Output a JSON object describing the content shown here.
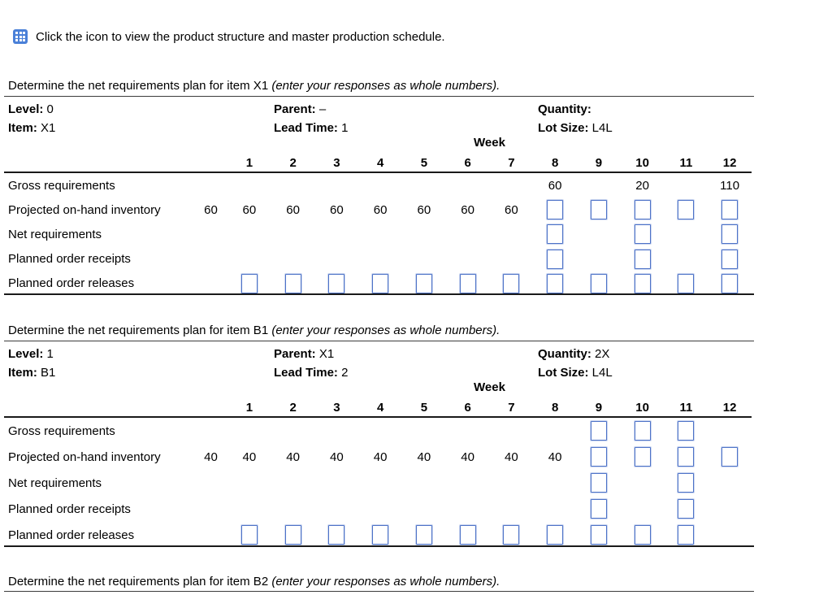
{
  "colors": {
    "icon-blue": "#4a80d8",
    "box-blue": "#4d72c7"
  },
  "header": {
    "icon": "product-structure-icon",
    "instruction": "Click the icon to view the product structure and master production schedule."
  },
  "sections": [
    {
      "intro_regular": "Determine the net requirements plan for item X1 ",
      "intro_italic": "(enter your responses as whole numbers).",
      "table": {
        "meta": {
          "level_label": "Level:",
          "level": "0",
          "item_label": "Item:",
          "item": "X1",
          "parent_label": "Parent:",
          "parent": "–",
          "lead_label": "Lead Time:",
          "lead": "1",
          "qty_label": "Quantity:",
          "qty": "",
          "lot_label": "Lot Size:",
          "lot": "L4L"
        },
        "week_header": "Week",
        "weeks": [
          "1",
          "2",
          "3",
          "4",
          "5",
          "6",
          "7",
          "8",
          "9",
          "10",
          "11",
          "12"
        ],
        "rows": [
          {
            "label": "Gross requirements",
            "initial": "",
            "cells": [
              "",
              "",
              "",
              "",
              "",
              "",
              "",
              "60",
              "",
              "20",
              "",
              "110"
            ]
          },
          {
            "label": "Projected on-hand inventory",
            "initial": "60",
            "cells": [
              "60",
              "60",
              "60",
              "60",
              "60",
              "60",
              "60",
              "box",
              "box",
              "box",
              "box",
              "box"
            ]
          },
          {
            "label": "Net requirements",
            "initial": "",
            "cells": [
              "",
              "",
              "",
              "",
              "",
              "",
              "",
              "box",
              "",
              "box",
              "",
              "box"
            ]
          },
          {
            "label": "Planned order receipts",
            "initial": "",
            "cells": [
              "",
              "",
              "",
              "",
              "",
              "",
              "",
              "box",
              "",
              "box",
              "",
              "box"
            ]
          },
          {
            "label": "Planned order releases",
            "initial": "",
            "cells": [
              "box",
              "box",
              "box",
              "box",
              "box",
              "box",
              "box",
              "box",
              "box",
              "box",
              "box",
              "box"
            ]
          }
        ]
      }
    },
    {
      "intro_regular": "Determine the net requirements plan for item B1 ",
      "intro_italic": "(enter your responses as whole numbers).",
      "table": {
        "meta": {
          "level_label": "Level:",
          "level": "1",
          "item_label": "Item:",
          "item": "B1",
          "parent_label": "Parent:",
          "parent": "X1",
          "lead_label": "Lead Time:",
          "lead": "2",
          "qty_label": "Quantity:",
          "qty": "2X",
          "lot_label": "Lot Size:",
          "lot": "L4L"
        },
        "week_header": "Week",
        "weeks": [
          "1",
          "2",
          "3",
          "4",
          "5",
          "6",
          "7",
          "8",
          "9",
          "10",
          "11",
          "12"
        ],
        "rows": [
          {
            "label": "Gross requirements",
            "initial": "",
            "cells": [
              "",
              "",
              "",
              "",
              "",
              "",
              "",
              "",
              "box",
              "box",
              "box",
              ""
            ]
          },
          {
            "label": "Projected on-hand inventory",
            "initial": "40",
            "cells": [
              "40",
              "40",
              "40",
              "40",
              "40",
              "40",
              "40",
              "40",
              "box",
              "box",
              "box",
              "box"
            ]
          },
          {
            "label": "Net requirements",
            "initial": "",
            "cells": [
              "",
              "",
              "",
              "",
              "",
              "",
              "",
              "",
              "box",
              "",
              "box",
              ""
            ]
          },
          {
            "label": "Planned order receipts",
            "initial": "",
            "cells": [
              "",
              "",
              "",
              "",
              "",
              "",
              "",
              "",
              "box",
              "",
              "box",
              ""
            ]
          },
          {
            "label": "Planned order releases",
            "initial": "",
            "cells": [
              "box",
              "box",
              "box",
              "box",
              "box",
              "box",
              "box",
              "box",
              "box",
              "box",
              "box",
              ""
            ]
          }
        ]
      }
    },
    {
      "intro_regular": "Determine the net requirements plan for item B2 ",
      "intro_italic": "(enter your responses as whole numbers)."
    }
  ]
}
